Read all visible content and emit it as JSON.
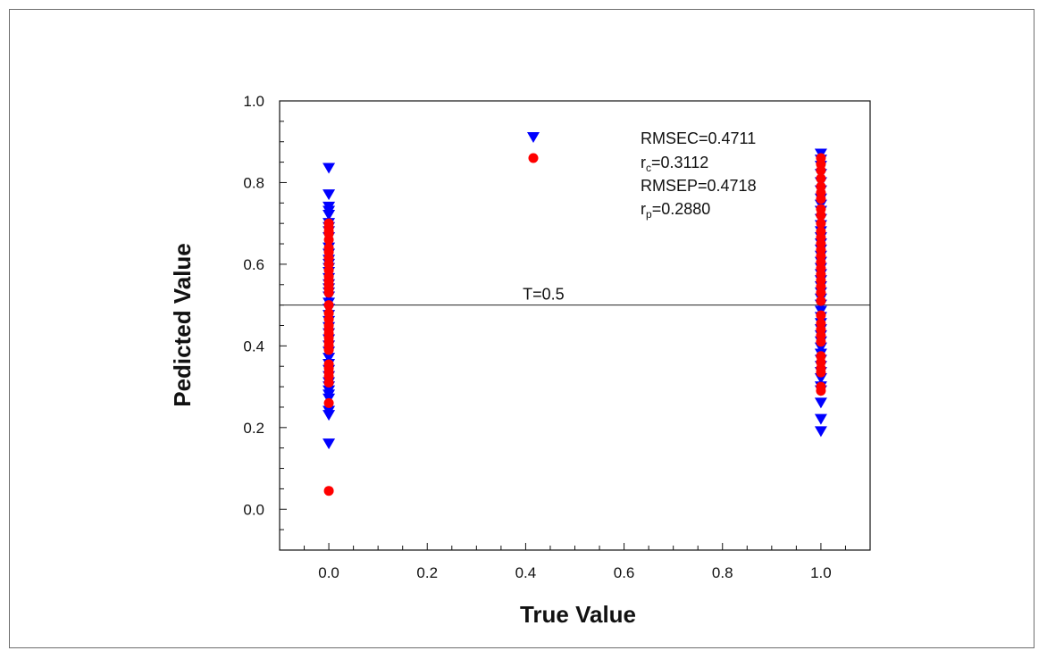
{
  "chart_data": {
    "type": "scatter",
    "xlabel": "True Value",
    "ylabel": "Pedicted Value",
    "xlim": [
      -0.1,
      1.1
    ],
    "ylim": [
      -0.1,
      1.0
    ],
    "x_ticks": [
      "0.0",
      "0.2",
      "0.4",
      "0.6",
      "0.8",
      "1.0"
    ],
    "y_ticks": [
      "0.0",
      "0.2",
      "0.4",
      "0.6",
      "0.8",
      "1.0"
    ],
    "grid": false,
    "legend_position": "top-right",
    "threshold": {
      "value": 0.5,
      "label": "T=0.5"
    },
    "stats": {
      "rmsec": "RMSEC=0.4711",
      "rc_main": "r",
      "rc_sub": "c",
      "rc_value": "=0.3112",
      "rmsep": "RMSEP=0.4718",
      "rp_main": "r",
      "rp_sub": "p",
      "rp_value": "=0.2880"
    },
    "series": [
      {
        "marker": "triangle-down",
        "color": "#0000ff",
        "points": [
          [
            0,
            0.835
          ],
          [
            0,
            0.77
          ],
          [
            0,
            0.74
          ],
          [
            0,
            0.73
          ],
          [
            0,
            0.72
          ],
          [
            0,
            0.7
          ],
          [
            0,
            0.69
          ],
          [
            0,
            0.68
          ],
          [
            0,
            0.665
          ],
          [
            0,
            0.64
          ],
          [
            0,
            0.625
          ],
          [
            0,
            0.61
          ],
          [
            0,
            0.6
          ],
          [
            0,
            0.59
          ],
          [
            0,
            0.58
          ],
          [
            0,
            0.565
          ],
          [
            0,
            0.55
          ],
          [
            0,
            0.54
          ],
          [
            0,
            0.53
          ],
          [
            0,
            0.52
          ],
          [
            0,
            0.505
          ],
          [
            0,
            0.49
          ],
          [
            0,
            0.475
          ],
          [
            0,
            0.46
          ],
          [
            0,
            0.445
          ],
          [
            0,
            0.43
          ],
          [
            0,
            0.415
          ],
          [
            0,
            0.4
          ],
          [
            0,
            0.385
          ],
          [
            0,
            0.37
          ],
          [
            0,
            0.355
          ],
          [
            0,
            0.34
          ],
          [
            0,
            0.325
          ],
          [
            0,
            0.31
          ],
          [
            0,
            0.3
          ],
          [
            0,
            0.29
          ],
          [
            0,
            0.28
          ],
          [
            0,
            0.27
          ],
          [
            0,
            0.24
          ],
          [
            0,
            0.23
          ],
          [
            0,
            0.16
          ],
          [
            1,
            0.87
          ],
          [
            1,
            0.855
          ],
          [
            1,
            0.84
          ],
          [
            1,
            0.82
          ],
          [
            1,
            0.8
          ],
          [
            1,
            0.78
          ],
          [
            1,
            0.76
          ],
          [
            1,
            0.745
          ],
          [
            1,
            0.73
          ],
          [
            1,
            0.71
          ],
          [
            1,
            0.695
          ],
          [
            1,
            0.68
          ],
          [
            1,
            0.665
          ],
          [
            1,
            0.65
          ],
          [
            1,
            0.635
          ],
          [
            1,
            0.62
          ],
          [
            1,
            0.605
          ],
          [
            1,
            0.59
          ],
          [
            1,
            0.575
          ],
          [
            1,
            0.56
          ],
          [
            1,
            0.545
          ],
          [
            1,
            0.53
          ],
          [
            1,
            0.515
          ],
          [
            1,
            0.5
          ],
          [
            1,
            0.485
          ],
          [
            1,
            0.47
          ],
          [
            1,
            0.455
          ],
          [
            1,
            0.44
          ],
          [
            1,
            0.425
          ],
          [
            1,
            0.41
          ],
          [
            1,
            0.395
          ],
          [
            1,
            0.38
          ],
          [
            1,
            0.365
          ],
          [
            1,
            0.35
          ],
          [
            1,
            0.335
          ],
          [
            1,
            0.32
          ],
          [
            1,
            0.3
          ],
          [
            1,
            0.29
          ],
          [
            1,
            0.26
          ],
          [
            1,
            0.22
          ],
          [
            1,
            0.19
          ]
        ]
      },
      {
        "marker": "circle",
        "color": "#ff0000",
        "points": [
          [
            0,
            0.7
          ],
          [
            0,
            0.69
          ],
          [
            0,
            0.68
          ],
          [
            0,
            0.675
          ],
          [
            0,
            0.66
          ],
          [
            0,
            0.64
          ],
          [
            0,
            0.63
          ],
          [
            0,
            0.615
          ],
          [
            0,
            0.6
          ],
          [
            0,
            0.585
          ],
          [
            0,
            0.57
          ],
          [
            0,
            0.56
          ],
          [
            0,
            0.55
          ],
          [
            0,
            0.54
          ],
          [
            0,
            0.53
          ],
          [
            0,
            0.5
          ],
          [
            0,
            0.48
          ],
          [
            0,
            0.465
          ],
          [
            0,
            0.45
          ],
          [
            0,
            0.44
          ],
          [
            0,
            0.43
          ],
          [
            0,
            0.42
          ],
          [
            0,
            0.41
          ],
          [
            0,
            0.4
          ],
          [
            0,
            0.39
          ],
          [
            0,
            0.355
          ],
          [
            0,
            0.345
          ],
          [
            0,
            0.335
          ],
          [
            0,
            0.325
          ],
          [
            0,
            0.31
          ],
          [
            0,
            0.26
          ],
          [
            0,
            0.045
          ],
          [
            1,
            0.86
          ],
          [
            1,
            0.845
          ],
          [
            1,
            0.83
          ],
          [
            1,
            0.81
          ],
          [
            1,
            0.79
          ],
          [
            1,
            0.775
          ],
          [
            1,
            0.76
          ],
          [
            1,
            0.735
          ],
          [
            1,
            0.72
          ],
          [
            1,
            0.7
          ],
          [
            1,
            0.68
          ],
          [
            1,
            0.665
          ],
          [
            1,
            0.65
          ],
          [
            1,
            0.635
          ],
          [
            1,
            0.62
          ],
          [
            1,
            0.605
          ],
          [
            1,
            0.59
          ],
          [
            1,
            0.575
          ],
          [
            1,
            0.56
          ],
          [
            1,
            0.545
          ],
          [
            1,
            0.53
          ],
          [
            1,
            0.51
          ],
          [
            1,
            0.475
          ],
          [
            1,
            0.455
          ],
          [
            1,
            0.44
          ],
          [
            1,
            0.425
          ],
          [
            1,
            0.41
          ],
          [
            1,
            0.375
          ],
          [
            1,
            0.36
          ],
          [
            1,
            0.345
          ],
          [
            1,
            0.335
          ],
          [
            1,
            0.3
          ],
          [
            1,
            0.29
          ]
        ]
      }
    ]
  }
}
